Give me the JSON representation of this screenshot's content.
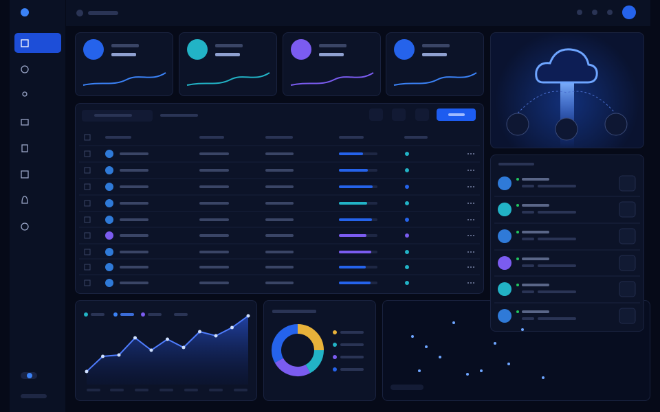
{
  "chart_data": [
    {
      "type": "line",
      "color": "#4f7dff",
      "values": [
        19,
        41,
        43,
        68,
        50,
        66,
        54,
        77,
        71,
        83,
        100
      ]
    },
    {
      "type": "pie",
      "values": [
        25,
        17,
        25,
        33
      ],
      "colors": [
        "#e8b23a",
        "#22b3c6",
        "#7b5cf0",
        "#2563eb"
      ]
    }
  ]
}
